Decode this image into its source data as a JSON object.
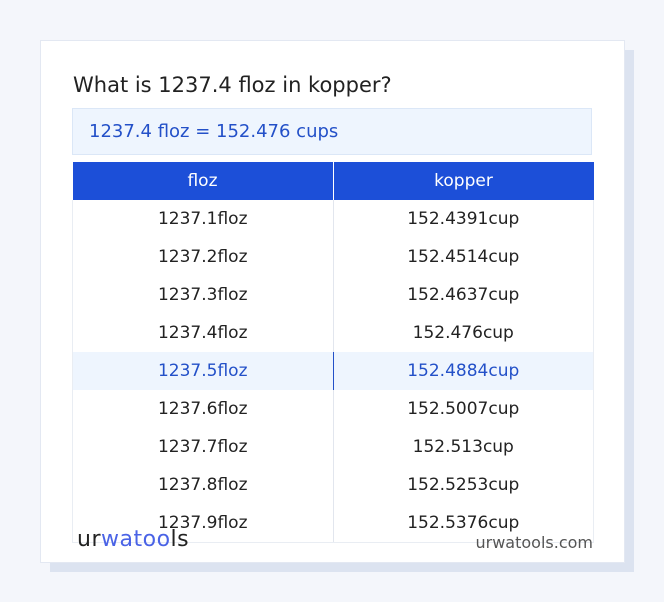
{
  "title": "What is 1237.4 floz in kopper?",
  "result": "1237.4 floz = 152.476 cups",
  "table": {
    "headers": [
      "floz",
      "kopper"
    ],
    "rows": [
      [
        "1237.1floz",
        "152.4391cup"
      ],
      [
        "1237.2floz",
        "152.4514cup"
      ],
      [
        "1237.3floz",
        "152.4637cup"
      ],
      [
        "1237.4floz",
        "152.476cup"
      ],
      [
        "1237.5floz",
        "152.4884cup"
      ],
      [
        "1237.6floz",
        "152.5007cup"
      ],
      [
        "1237.7floz",
        "152.513cup"
      ],
      [
        "1237.8floz",
        "152.5253cup"
      ],
      [
        "1237.9floz",
        "152.5376cup"
      ]
    ],
    "highlighted_row": 4
  },
  "footer": {
    "logo": {
      "part1": "ur",
      "part2": "wat",
      "part3": "oo",
      "part4": "ls"
    },
    "site": "urwatools.com"
  },
  "colors": {
    "accent": "#1c4fd8",
    "highlight_text": "#2350c8",
    "highlight_bg": "#eef5fe"
  }
}
